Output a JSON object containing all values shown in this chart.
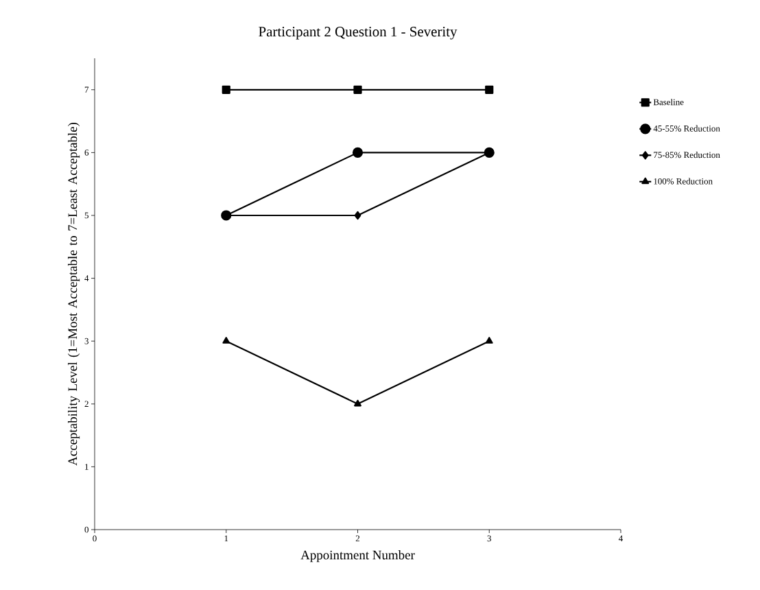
{
  "chart_data": {
    "type": "line",
    "title": "Participant 2 Question 1 - Severity",
    "xlabel": "Appointment Number",
    "ylabel": "Acceptability Level (1=Most Acceptable to 7=Least Acceptable)",
    "x": [
      1,
      2,
      3
    ],
    "series": [
      {
        "name": "Baseline",
        "color": "#000000",
        "marker": "square",
        "values": [
          7,
          7,
          7
        ]
      },
      {
        "name": "45-55% Reduction",
        "color": "#000000",
        "marker": "circle",
        "values": [
          5,
          6,
          6
        ]
      },
      {
        "name": "75-85% Reduction",
        "color": "#000000",
        "marker": "diamond",
        "values": [
          5,
          5,
          6
        ]
      },
      {
        "name": "100% Reduction",
        "color": "#000000",
        "marker": "triangle",
        "values": [
          3,
          2,
          3
        ]
      }
    ],
    "xlim": [
      0,
      4
    ],
    "xticks": [
      0,
      1,
      2,
      3,
      4
    ],
    "ylim": [
      0,
      7.5
    ],
    "yticks": [
      0,
      1,
      2,
      3,
      4,
      5,
      6,
      7
    ],
    "grid": false,
    "legend": "right",
    "line_style": "solid"
  }
}
